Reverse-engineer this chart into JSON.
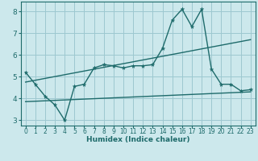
{
  "xlabel": "Humidex (Indice chaleur)",
  "bg_color": "#cce8ec",
  "grid_color": "#9dc8d0",
  "line_color": "#1e6b6b",
  "xlim": [
    -0.5,
    23.5
  ],
  "ylim": [
    2.75,
    8.45
  ],
  "xticks": [
    0,
    1,
    2,
    3,
    4,
    5,
    6,
    7,
    8,
    9,
    10,
    11,
    12,
    13,
    14,
    15,
    16,
    17,
    18,
    19,
    20,
    21,
    22,
    23
  ],
  "yticks": [
    3,
    4,
    5,
    6,
    7,
    8
  ],
  "line1_x": [
    0,
    1,
    2,
    3,
    4,
    5,
    6,
    7,
    8,
    9,
    10,
    11,
    12,
    13,
    14,
    15,
    16,
    17,
    18,
    19,
    20,
    21,
    22,
    23
  ],
  "line1_y": [
    5.2,
    4.65,
    4.1,
    3.7,
    3.0,
    4.55,
    4.65,
    5.4,
    5.55,
    5.5,
    5.4,
    5.5,
    5.5,
    5.55,
    6.3,
    7.6,
    8.1,
    7.3,
    8.1,
    5.35,
    4.65,
    4.65,
    4.35,
    4.4
  ],
  "line2_x": [
    0,
    23
  ],
  "line2_y": [
    4.75,
    6.7
  ],
  "line3_x": [
    0,
    23
  ],
  "line3_y": [
    3.85,
    4.3
  ],
  "xlabel_fontsize": 6.5,
  "tick_fontsize_x": 5.5,
  "tick_fontsize_y": 6.5
}
